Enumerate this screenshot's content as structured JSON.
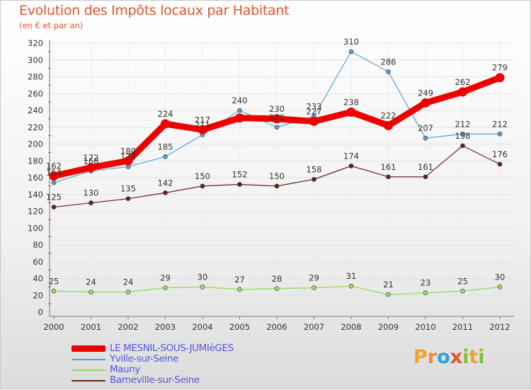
{
  "title": "Evolution des Impôts locaux par Habitant",
  "subtitle": "(en € et par an)",
  "logo": {
    "letters": [
      "P",
      "r",
      "o",
      "x",
      "i",
      "t",
      "i"
    ],
    "colors": [
      "#f0a32e",
      "#f08a2e",
      "#2e9ee0",
      "#e0552e",
      "#7cc52e",
      "#f0a32e",
      "#7cc52e"
    ]
  },
  "chart_data": {
    "type": "line",
    "title": "Evolution des Impôts locaux par Habitant",
    "subtitle": "(en € et par an)",
    "x": [
      "2000",
      "2001",
      "2002",
      "2003",
      "2004",
      "2005",
      "2006",
      "2007",
      "2008",
      "2009",
      "2010",
      "2011",
      "2012"
    ],
    "ylim": [
      0,
      320
    ],
    "yticks": [
      0,
      20,
      40,
      60,
      80,
      100,
      120,
      140,
      160,
      180,
      200,
      220,
      240,
      260,
      280,
      300,
      320
    ],
    "grid": true,
    "legend_position": "bottom-left",
    "series": [
      {
        "name": "LE MESNIL-SOUS-JUMIèGES",
        "color": "#ee0000",
        "width": 9,
        "marker": 6.5,
        "values": [
          162,
          172,
          180,
          224,
          217,
          231,
          230,
          227,
          238,
          222,
          249,
          262,
          279
        ],
        "labels": [
          "162",
          "172",
          "180",
          "224",
          "217",
          "",
          "230",
          "227",
          "238",
          "222",
          "249",
          "262",
          "279"
        ]
      },
      {
        "name": "Yville-sur-Seine",
        "color": "#5a9fd4",
        "width": 1.2,
        "marker": 3,
        "values": [
          154,
          168,
          173,
          185,
          211,
          240,
          220,
          233,
          310,
          286,
          207,
          212,
          212
        ],
        "labels": [
          "154",
          "168",
          "173",
          "185",
          "211",
          "240",
          "220",
          "233",
          "310",
          "286",
          "207",
          "212",
          "212"
        ]
      },
      {
        "name": "Mauny",
        "color": "#99dd66",
        "width": 1.5,
        "marker": 3,
        "values": [
          25,
          24,
          24,
          29,
          30,
          27,
          28,
          29,
          31,
          21,
          23,
          25,
          30
        ],
        "labels": [
          "25",
          "24",
          "24",
          "29",
          "30",
          "27",
          "28",
          "29",
          "31",
          "21",
          "23",
          "25",
          "30"
        ]
      },
      {
        "name": "Barneville-sur-Seine",
        "color": "#6b1f1f",
        "width": 1.2,
        "marker": 3,
        "values": [
          125,
          130,
          135,
          142,
          150,
          152,
          150,
          158,
          174,
          161,
          161,
          198,
          176
        ],
        "labels": [
          "125",
          "130",
          "135",
          "142",
          "150",
          "152",
          "150",
          "158",
          "174",
          "161",
          "161",
          "198",
          "176"
        ]
      }
    ]
  }
}
